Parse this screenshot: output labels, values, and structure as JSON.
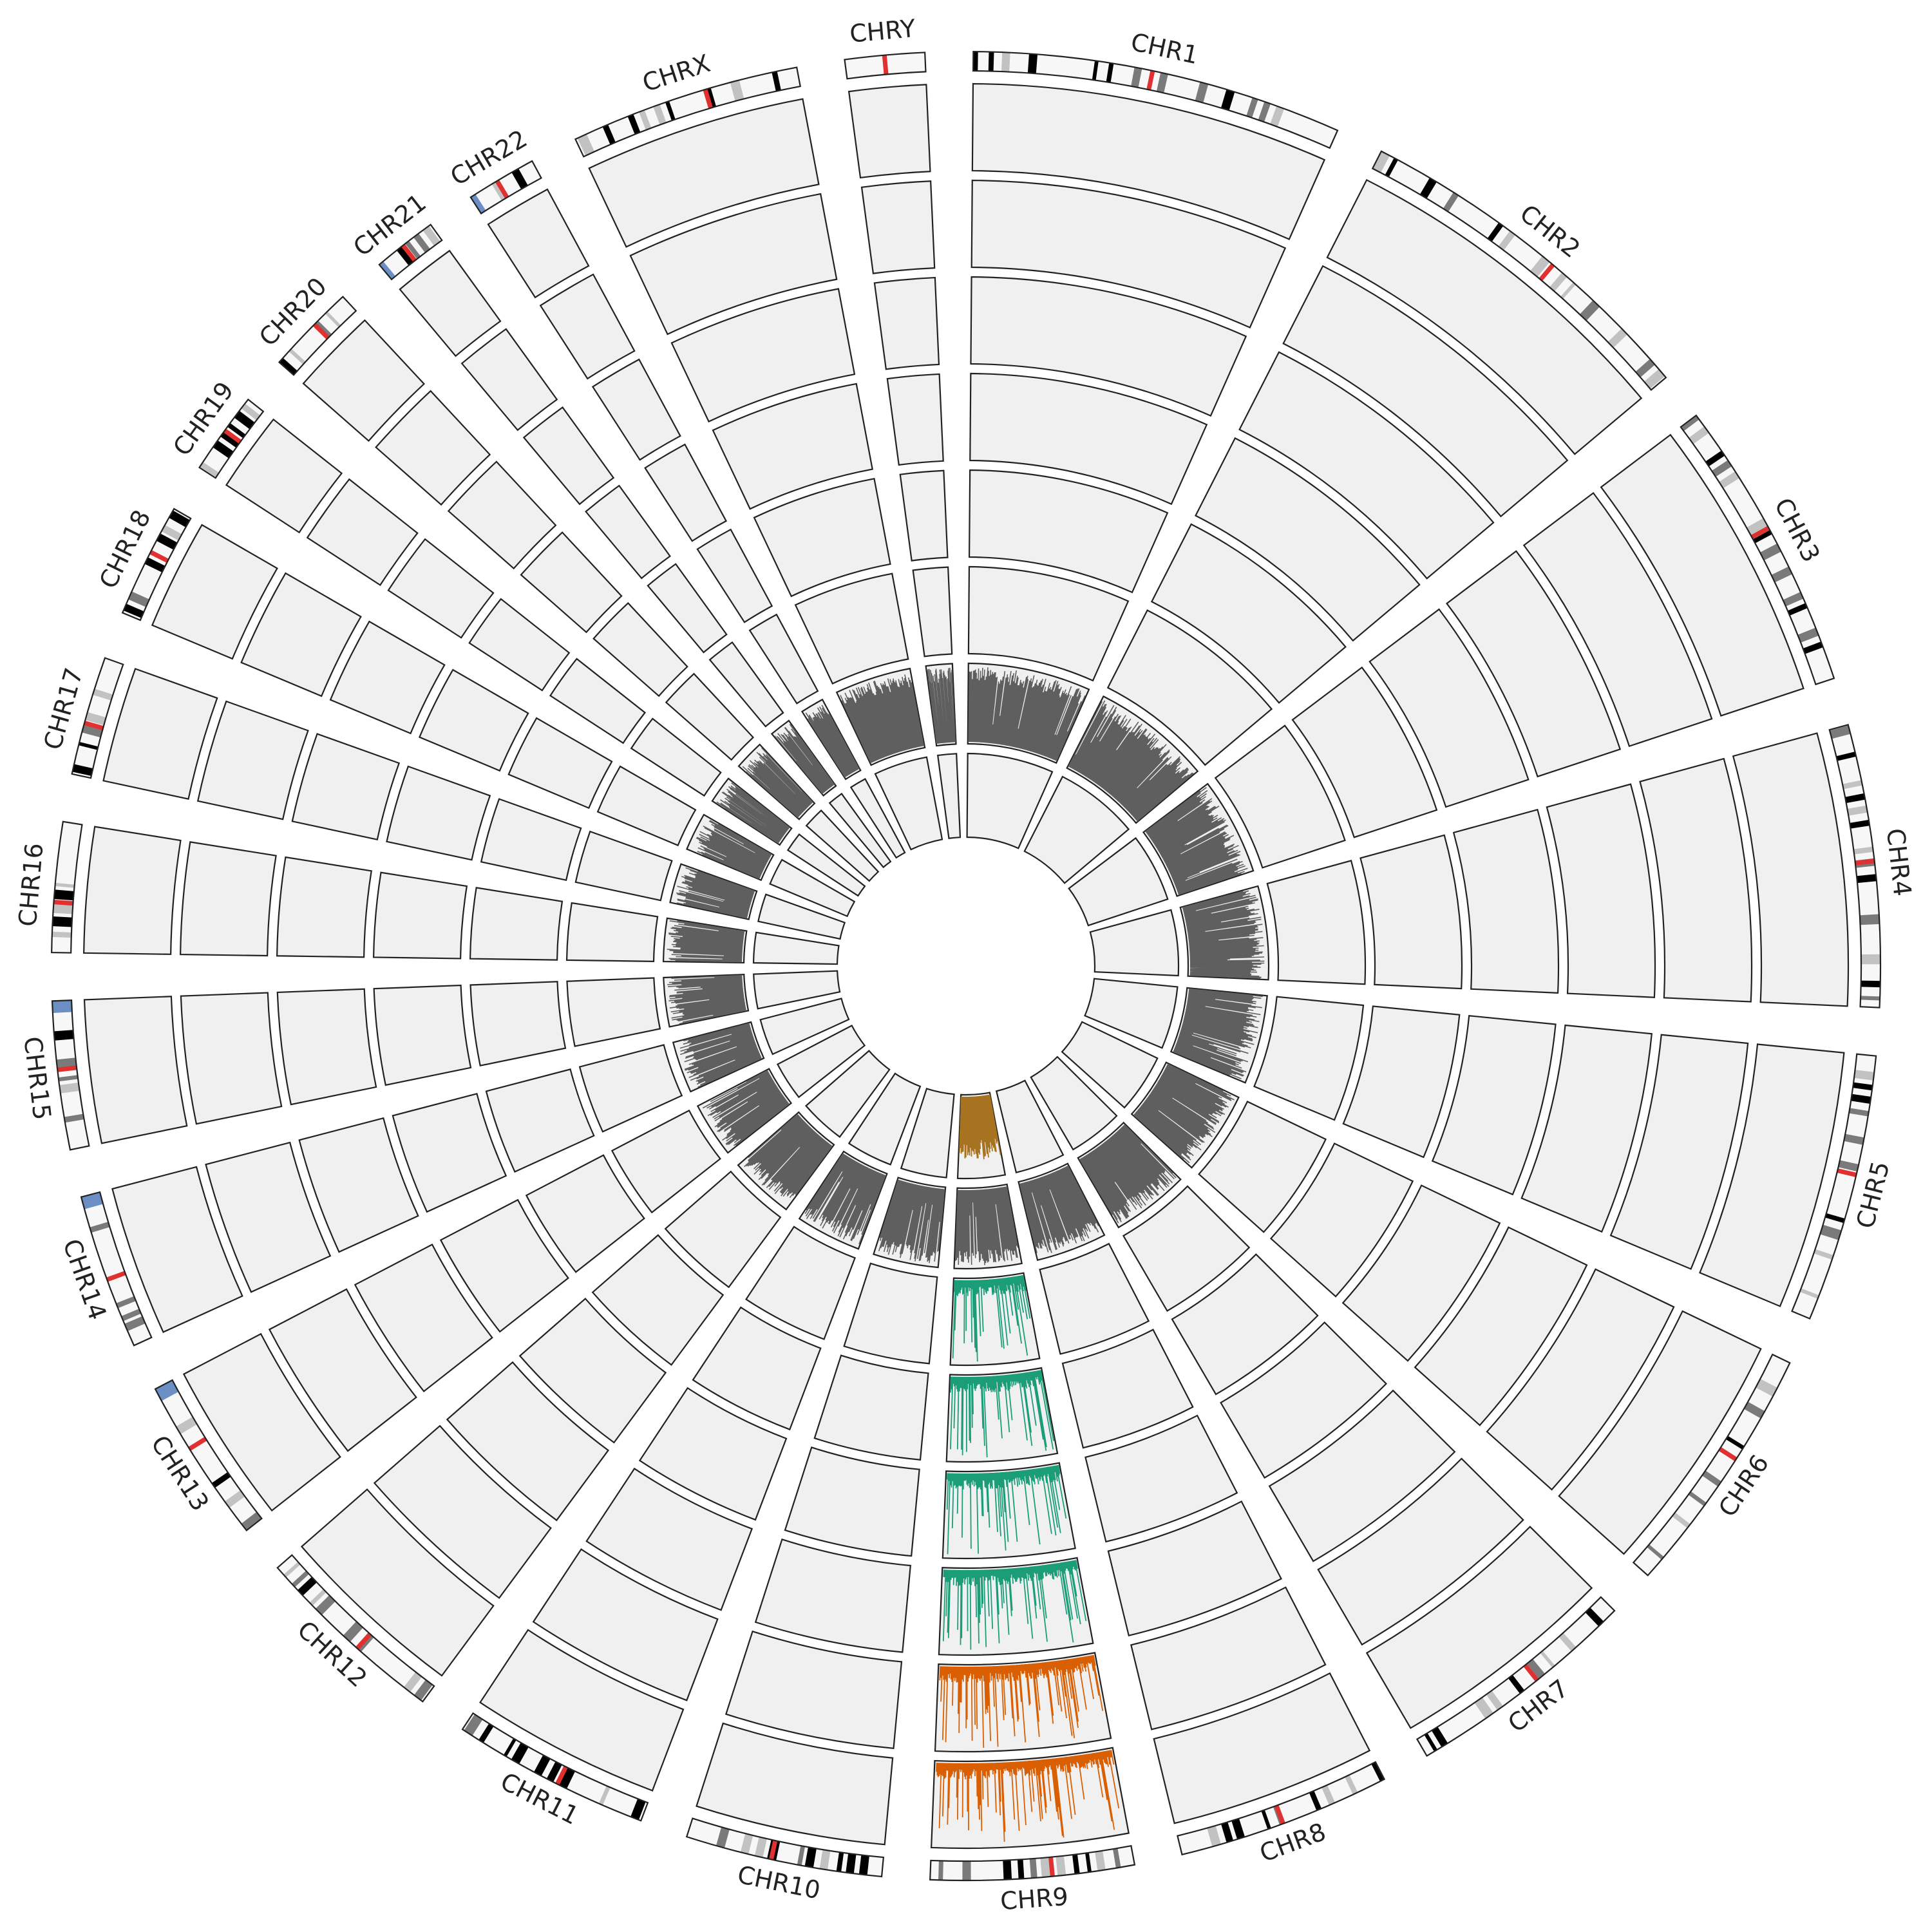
{
  "figure": {
    "chromosomes": [
      {
        "id": "chr1",
        "label": "CHR1",
        "size": 248
      },
      {
        "id": "chr2",
        "label": "CHR2",
        "size": 242
      },
      {
        "id": "chr3",
        "label": "CHR3",
        "size": 198
      },
      {
        "id": "chr4",
        "label": "CHR4",
        "size": 190
      },
      {
        "id": "chr5",
        "label": "CHR5",
        "size": 181
      },
      {
        "id": "chr6",
        "label": "CHR6",
        "size": 171
      },
      {
        "id": "chr7",
        "label": "CHR7",
        "size": 159
      },
      {
        "id": "chr8",
        "label": "CHR8",
        "size": 145
      },
      {
        "id": "chr9",
        "label": "CHR9",
        "size": 138
      },
      {
        "id": "chr10",
        "label": "CHR10",
        "size": 134
      },
      {
        "id": "chr11",
        "label": "CHR11",
        "size": 135
      },
      {
        "id": "chr12",
        "label": "CHR12",
        "size": 133
      },
      {
        "id": "chr13",
        "label": "CHR13",
        "size": 114
      },
      {
        "id": "chr14",
        "label": "CHR14",
        "size": 107
      },
      {
        "id": "chr15",
        "label": "CHR15",
        "size": 102
      },
      {
        "id": "chr16",
        "label": "CHR16",
        "size": 90
      },
      {
        "id": "chr17",
        "label": "CHR17",
        "size": 83
      },
      {
        "id": "chr18",
        "label": "CHR18",
        "size": 80
      },
      {
        "id": "chr19",
        "label": "CHR19",
        "size": 59
      },
      {
        "id": "chr20",
        "label": "CHR20",
        "size": 64
      },
      {
        "id": "chr21",
        "label": "CHR21",
        "size": 47
      },
      {
        "id": "chr22",
        "label": "CHR22",
        "size": 51
      },
      {
        "id": "chrX",
        "label": "CHRX",
        "size": 156
      },
      {
        "id": "chrY",
        "label": "CHRY",
        "size": 57
      }
    ],
    "tracks": [
      {
        "index": 0,
        "kind": "histogram",
        "note": "innermost",
        "active": [
          "chr9"
        ],
        "color": "#a87320"
      },
      {
        "index": 1,
        "kind": "histogram",
        "note": "grey density",
        "active": [
          "all"
        ],
        "color": "#5f5f5f"
      },
      {
        "index": 2,
        "kind": "histogram",
        "active": [
          "chr9"
        ],
        "color": "#1b9e77"
      },
      {
        "index": 3,
        "kind": "histogram",
        "active": [
          "chr9"
        ],
        "color": "#1b9e77"
      },
      {
        "index": 4,
        "kind": "histogram",
        "active": [
          "chr9"
        ],
        "color": "#1b9e77"
      },
      {
        "index": 5,
        "kind": "histogram",
        "active": [
          "chr9"
        ],
        "color": "#1b9e77"
      },
      {
        "index": 6,
        "kind": "histogram",
        "active": [
          "chr9"
        ],
        "color": "#d95f02"
      },
      {
        "index": 7,
        "kind": "histogram",
        "active": [
          "chr9"
        ],
        "color": "#d95f02"
      }
    ],
    "colors": {
      "track_background": "#f0f0f0",
      "outline": "#222222",
      "centromere": "#e03030",
      "stalk": "#6b8fc4",
      "band_dark": "#000000",
      "band_mid": "#7a7a7a",
      "band_light": "#c2c2c2"
    }
  }
}
